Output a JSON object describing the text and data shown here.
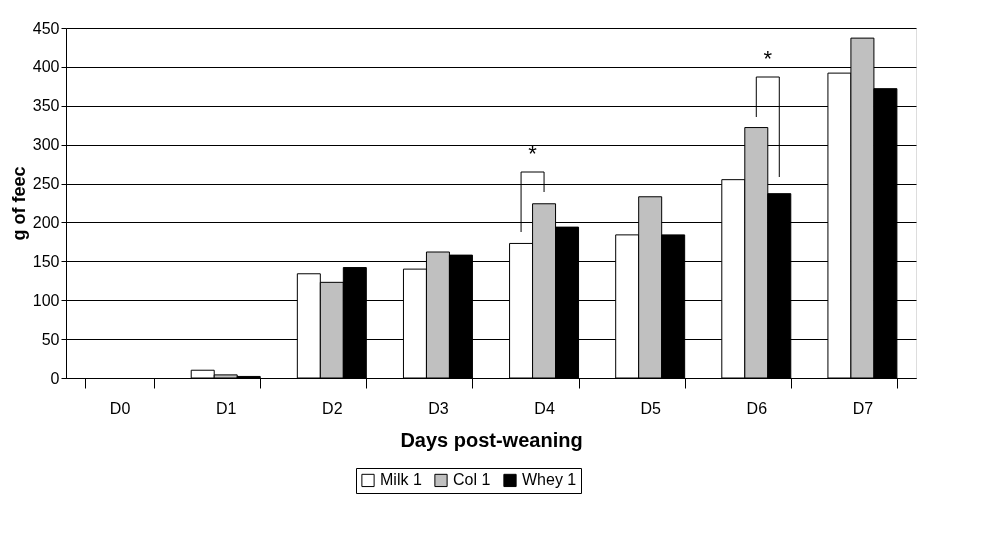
{
  "chart_data": {
    "type": "bar",
    "xlabel": "Days post-weaning",
    "ylabel": "g of feec",
    "categories": [
      "D0",
      "D1",
      "D2",
      "D3",
      "D4",
      "D5",
      "D6",
      "D7"
    ],
    "series": [
      {
        "name": "Milk 1",
        "color": "#ffffff",
        "values": [
          0,
          10,
          134,
          140,
          173,
          184,
          255,
          392
        ]
      },
      {
        "name": "Col 1",
        "color": "#c0c0c0",
        "values": [
          0,
          4,
          123,
          162,
          224,
          233,
          322,
          437
        ]
      },
      {
        "name": "Whey 1",
        "color": "#000000",
        "values": [
          0,
          2,
          142,
          158,
          194,
          184,
          237,
          372
        ]
      }
    ],
    "ylim": [
      0,
      450
    ],
    "yticks": [
      0,
      50,
      100,
      150,
      200,
      250,
      300,
      350,
      400,
      450
    ],
    "grid": "y",
    "legend": "bottom",
    "annotations": [
      "*",
      "*"
    ]
  }
}
